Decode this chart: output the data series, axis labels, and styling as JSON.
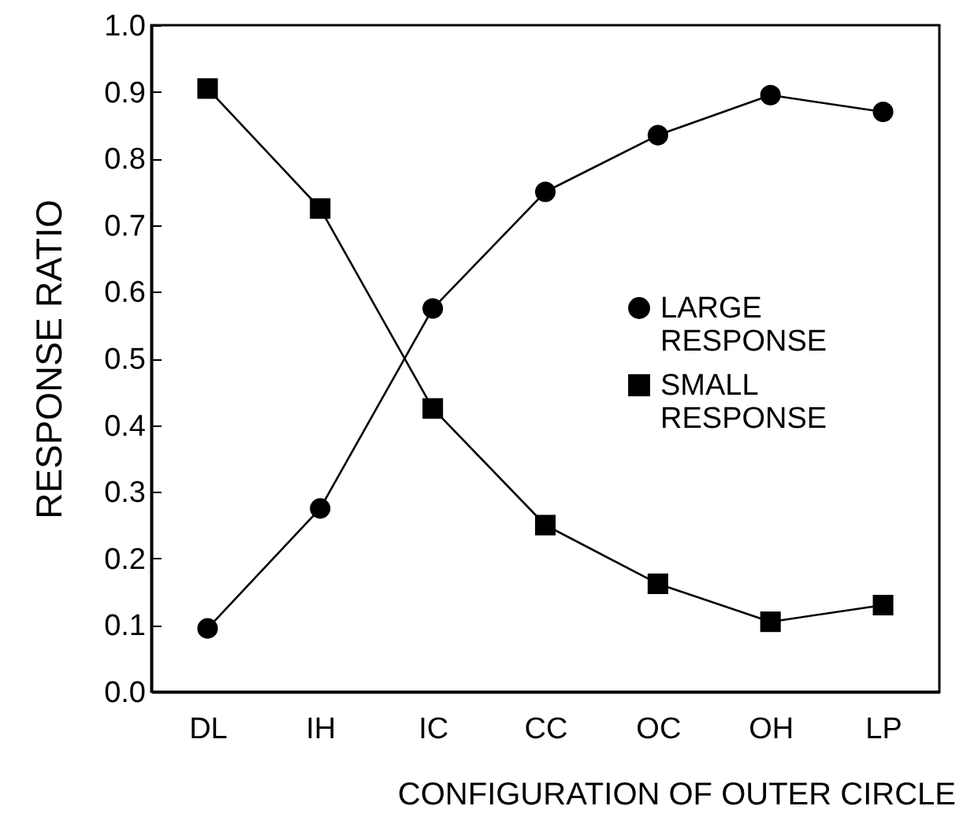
{
  "chart_data": {
    "type": "line",
    "xlabel": "CONFIGURATION OF OUTER CIRCLE",
    "ylabel": "RESPONSE RATIO",
    "categories": [
      "DL",
      "IH",
      "IC",
      "CC",
      "OC",
      "OH",
      "LP"
    ],
    "series": [
      {
        "name": "LARGE RESPONSE",
        "color": "#000000",
        "marker": "circle",
        "values": [
          0.095,
          0.275,
          0.575,
          0.75,
          0.835,
          0.895,
          0.87
        ]
      },
      {
        "name": "SMALL RESPONSE",
        "color": "#000000",
        "marker": "square",
        "values": [
          0.905,
          0.725,
          0.425,
          0.25,
          0.162,
          0.105,
          0.13
        ]
      }
    ],
    "ylim": [
      0,
      1
    ],
    "yticks": [
      {
        "value": 0,
        "label": "0.0"
      },
      0.1,
      0.2,
      0.3,
      0.4,
      0.5,
      0.6,
      0.7,
      0.8,
      0.9,
      {
        "value": 1,
        "label": "1.0"
      }
    ],
    "grid": false,
    "legend": "right",
    "line_style": "solid"
  }
}
